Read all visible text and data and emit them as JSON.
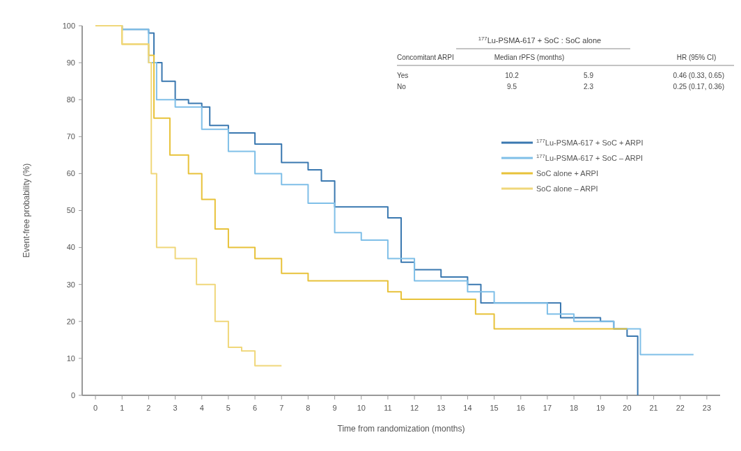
{
  "chart_data": {
    "type": "step",
    "xlabel": "Time from randomization (months)",
    "ylabel": "Event-free probability (%)",
    "xlim": [
      -0.5,
      23.5
    ],
    "ylim": [
      0,
      100
    ],
    "xticks": [
      0,
      1,
      2,
      3,
      4,
      5,
      6,
      7,
      8,
      9,
      10,
      11,
      12,
      13,
      14,
      15,
      16,
      17,
      18,
      19,
      20,
      21,
      22,
      23
    ],
    "yticks": [
      0,
      10,
      20,
      30,
      40,
      50,
      60,
      70,
      80,
      90,
      100
    ],
    "grid": false,
    "legend": "top right",
    "series": [
      {
        "name": "$^{177}$Lu-PSMA-617 + SoC + ARPI",
        "color": "#3a78b0",
        "x": [
          0,
          1,
          2,
          2.2,
          2.5,
          3,
          3.5,
          4,
          4.3,
          5,
          6,
          7,
          8,
          8.5,
          9,
          10,
          11,
          11.5,
          12,
          13,
          14,
          14.5,
          17,
          17.5,
          19,
          19.5,
          20,
          20.4,
          20.4
        ],
        "values": [
          100,
          99,
          98,
          90,
          85,
          80,
          79,
          78,
          73,
          71,
          68,
          63,
          61,
          58,
          51,
          51,
          48,
          36,
          34,
          32,
          30,
          25,
          25,
          21,
          20,
          18,
          16,
          16,
          0
        ]
      },
      {
        "name": "$^{177}$Lu-PSMA-617 + SoC – ARPI",
        "color": "#7fbfe8",
        "x": [
          0,
          1,
          2,
          2.3,
          3,
          4,
          5,
          6,
          7,
          8,
          9,
          10,
          11,
          12,
          13,
          14,
          15,
          17,
          18,
          19.5,
          20.5,
          22.5
        ],
        "values": [
          100,
          99,
          90,
          80,
          78,
          72,
          66,
          60,
          57,
          52,
          44,
          42,
          37,
          31,
          31,
          28,
          25,
          22,
          20,
          18,
          11,
          11
        ]
      },
      {
        "name": "SoC alone + ARPI",
        "color": "#e8c23a",
        "x": [
          0,
          1,
          2,
          2.2,
          2.8,
          3.5,
          4,
          4.5,
          5,
          6,
          7,
          8,
          10,
          11,
          11.5,
          14,
          14.3,
          15,
          20
        ],
        "values": [
          100,
          95,
          92,
          75,
          65,
          60,
          53,
          45,
          40,
          37,
          33,
          31,
          31,
          28,
          26,
          26,
          22,
          18,
          18
        ]
      },
      {
        "name": "SoC alone – ARPI",
        "color": "#f0d77a",
        "x": [
          0,
          1,
          2,
          2.1,
          2.3,
          3,
          3.8,
          4.5,
          5,
          5.5,
          6,
          7
        ],
        "values": [
          100,
          95,
          90,
          60,
          40,
          37,
          30,
          20,
          13,
          12,
          8,
          8
        ]
      }
    ],
    "annotations": [
      "$^{177}$Lu-PSMA-617 + SoC : SoC alone",
      "Concomitant ARPI",
      "Median rPFS (months)",
      "HR (95% CI)",
      "Yes",
      "10.2",
      "5.9",
      "0.46 (0.33, 0.65)",
      "No",
      "9.5",
      "2.3",
      "0.25 (0.17, 0.36)"
    ]
  }
}
